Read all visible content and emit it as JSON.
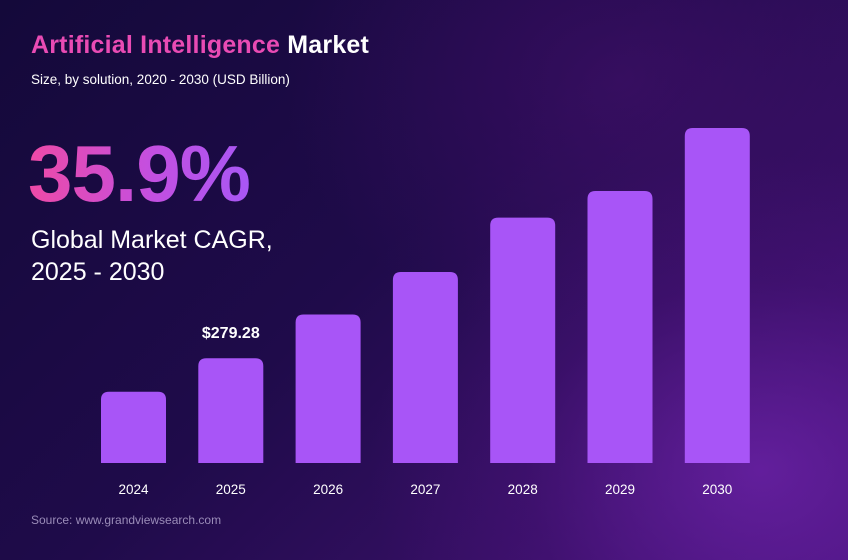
{
  "header": {
    "title_accent": "Artificial Intelligence",
    "title_rest": "Market",
    "subtitle": "Size, by solution, 2020 - 2030 (USD Billion)"
  },
  "highlight": {
    "cagr": "35.9%",
    "label_line1": "Global Market CAGR,",
    "label_line2": "2025 - 2030"
  },
  "source": "Source: www.grandviewsearch.com",
  "colors": {
    "accent_pink": "#e94bb4",
    "bar": "#a855f7",
    "background": "#1f0b4a"
  },
  "chart_data": {
    "type": "bar",
    "title": "Artificial Intelligence Market",
    "subtitle": "Size, by solution, 2020 - 2030 (USD Billion)",
    "xlabel": "",
    "ylabel": "",
    "categories": [
      "2024",
      "2025",
      "2026",
      "2027",
      "2028",
      "2029",
      "2030"
    ],
    "values": [
      190,
      279.28,
      396,
      509,
      654,
      725,
      893
    ],
    "data_labels": [
      {
        "category": "2025",
        "text": "$279.28"
      }
    ],
    "ylim": [
      0,
      893
    ],
    "grid": false,
    "legend": "none",
    "bar_color": "#a855f7"
  }
}
